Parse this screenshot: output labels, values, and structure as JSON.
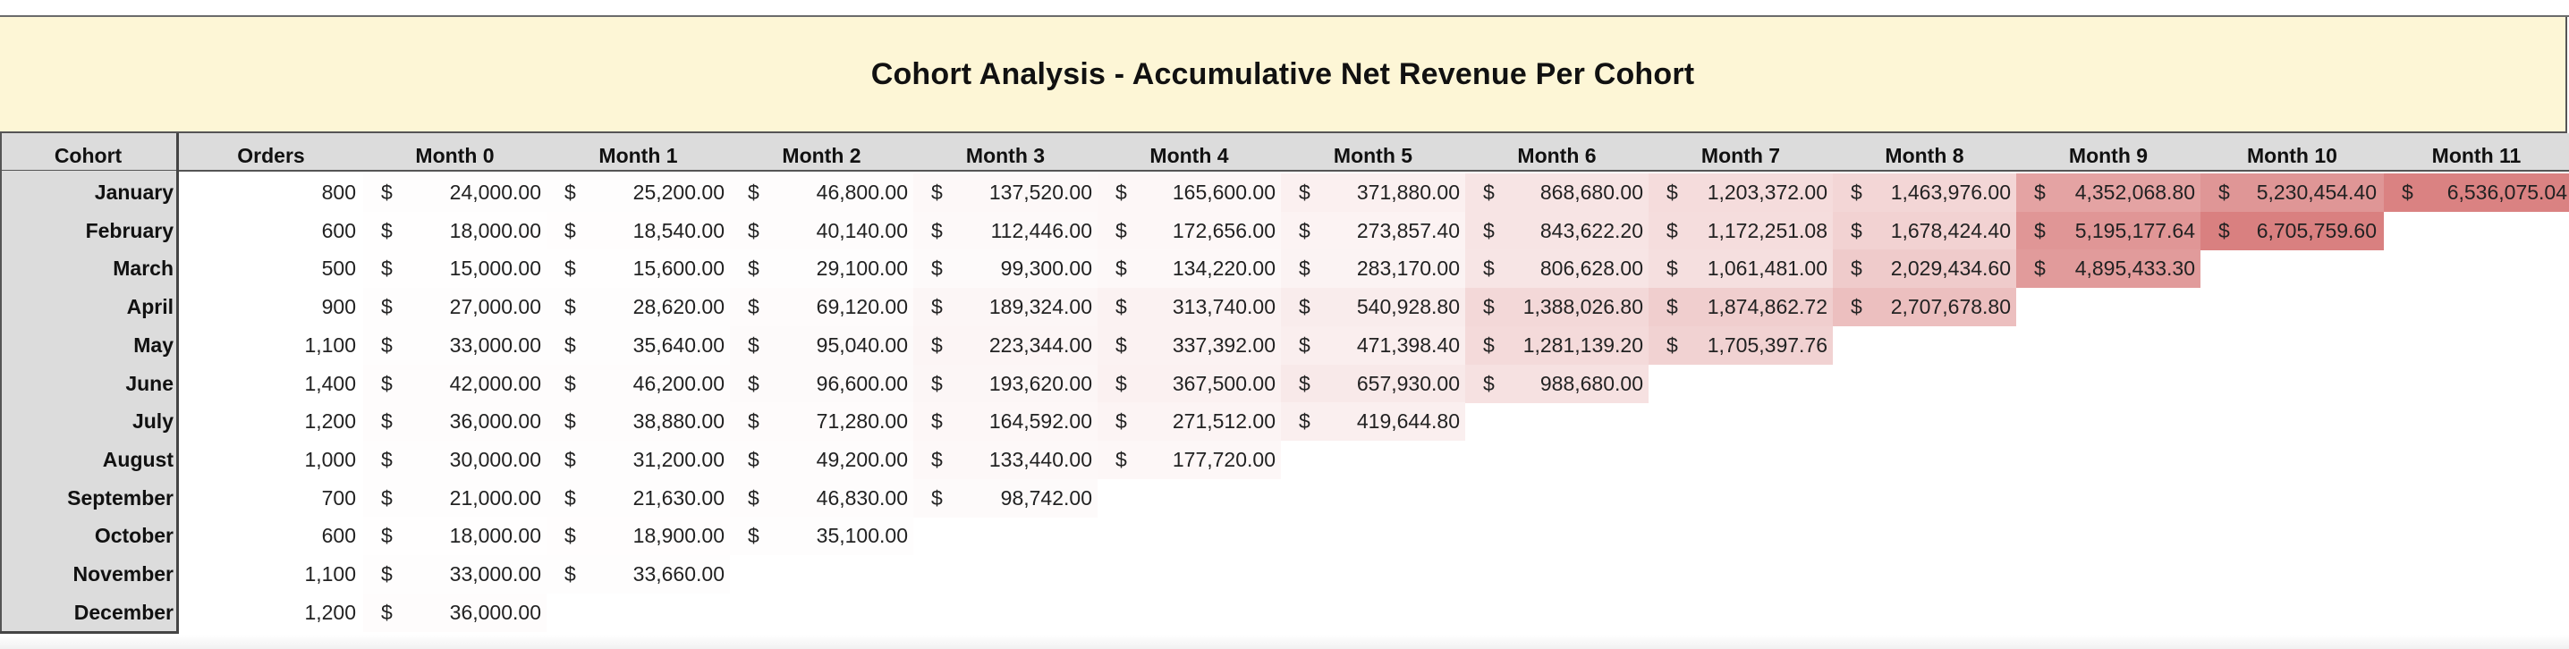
{
  "title": "Cohort Analysis - Accumulative Net Revenue Per Cohort",
  "headers": {
    "cohort": "Cohort",
    "orders": "Orders",
    "months": [
      "Month 0",
      "Month 1",
      "Month 2",
      "Month 3",
      "Month 4",
      "Month 5",
      "Month 6",
      "Month 7",
      "Month 8",
      "Month 9",
      "Month 10",
      "Month 11"
    ]
  },
  "currency_symbol": "$",
  "heat_colors": {
    "low": "#ffffff",
    "high": "#d98080"
  },
  "heat_range": [
    0,
    6705759.6
  ],
  "rows": [
    {
      "cohort": "January",
      "orders": "800",
      "values": [
        "24,000.00",
        "25,200.00",
        "46,800.00",
        "137,520.00",
        "165,600.00",
        "371,880.00",
        "868,680.00",
        "1,203,372.00",
        "1,463,976.00",
        "4,352,068.80",
        "5,230,454.40",
        "6,536,075.04"
      ]
    },
    {
      "cohort": "February",
      "orders": "600",
      "values": [
        "18,000.00",
        "18,540.00",
        "40,140.00",
        "112,446.00",
        "172,656.00",
        "273,857.40",
        "843,622.20",
        "1,172,251.08",
        "1,678,424.40",
        "5,195,177.64",
        "6,705,759.60"
      ]
    },
    {
      "cohort": "March",
      "orders": "500",
      "values": [
        "15,000.00",
        "15,600.00",
        "29,100.00",
        "99,300.00",
        "134,220.00",
        "283,170.00",
        "806,628.00",
        "1,061,481.00",
        "2,029,434.60",
        "4,895,433.30"
      ]
    },
    {
      "cohort": "April",
      "orders": "900",
      "values": [
        "27,000.00",
        "28,620.00",
        "69,120.00",
        "189,324.00",
        "313,740.00",
        "540,928.80",
        "1,388,026.80",
        "1,874,862.72",
        "2,707,678.80"
      ]
    },
    {
      "cohort": "May",
      "orders": "1,100",
      "values": [
        "33,000.00",
        "35,640.00",
        "95,040.00",
        "223,344.00",
        "337,392.00",
        "471,398.40",
        "1,281,139.20",
        "1,705,397.76"
      ]
    },
    {
      "cohort": "June",
      "orders": "1,400",
      "values": [
        "42,000.00",
        "46,200.00",
        "96,600.00",
        "193,620.00",
        "367,500.00",
        "657,930.00",
        "988,680.00"
      ]
    },
    {
      "cohort": "July",
      "orders": "1,200",
      "values": [
        "36,000.00",
        "38,880.00",
        "71,280.00",
        "164,592.00",
        "271,512.00",
        "419,644.80"
      ]
    },
    {
      "cohort": "August",
      "orders": "1,000",
      "values": [
        "30,000.00",
        "31,200.00",
        "49,200.00",
        "133,440.00",
        "177,720.00"
      ]
    },
    {
      "cohort": "September",
      "orders": "700",
      "values": [
        "21,000.00",
        "21,630.00",
        "46,830.00",
        "98,742.00"
      ]
    },
    {
      "cohort": "October",
      "orders": "600",
      "values": [
        "18,000.00",
        "18,900.00",
        "35,100.00"
      ]
    },
    {
      "cohort": "November",
      "orders": "1,100",
      "values": [
        "33,000.00",
        "33,660.00"
      ]
    },
    {
      "cohort": "December",
      "orders": "1,200",
      "values": [
        "36,000.00"
      ]
    }
  ]
}
